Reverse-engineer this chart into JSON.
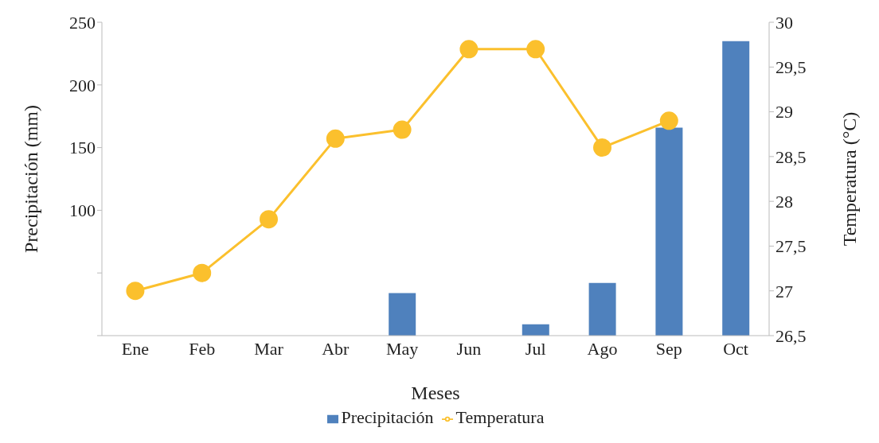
{
  "chart_data": {
    "type": "bar",
    "xlabel": "Meses",
    "ylabel": "Precipitación (mm)",
    "y2label": "Temperatura (°C)",
    "categories": [
      "Ene",
      "Feb",
      "Mar",
      "Abr",
      "May",
      "Jun",
      "Jul",
      "Ago",
      "Sep",
      "Oct"
    ],
    "series": [
      {
        "name": "Precipitación",
        "color": "#4f81bd",
        "values": [
          0,
          0,
          0,
          0,
          34,
          0,
          9,
          42,
          166,
          235
        ]
      },
      {
        "name": "Temperatura",
        "type": "line",
        "axis": "y2",
        "color": "#fbc02d",
        "marker": "circle",
        "values": [
          27.0,
          27.2,
          27.8,
          28.7,
          28.8,
          29.7,
          29.7,
          28.6,
          28.9,
          null
        ]
      }
    ],
    "ylim": [
      0,
      250
    ],
    "yticks": [
      {
        "value": 0,
        "label": null
      },
      {
        "value": 50,
        "label": null
      },
      100,
      150,
      200,
      250
    ],
    "y2lim": [
      26.5,
      30
    ],
    "y2ticks": [
      {
        "value": 26.5,
        "label": "26,5"
      },
      27,
      {
        "value": 27.5,
        "label": "27,5"
      },
      28,
      {
        "value": 28.5,
        "label": "28,5"
      },
      29,
      {
        "value": 29.5,
        "label": "29,5"
      },
      30
    ],
    "grid": false,
    "legend": "bottom"
  }
}
